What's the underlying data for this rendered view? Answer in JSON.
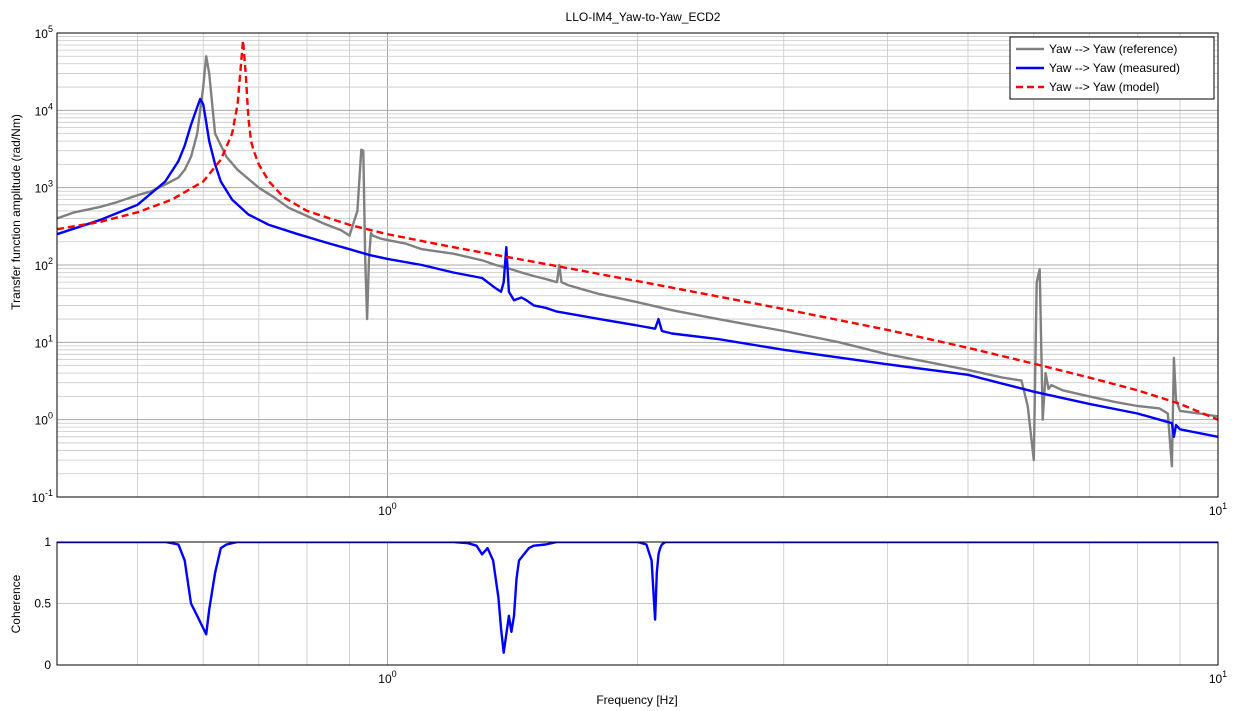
{
  "figure": {
    "title": "LLO-IM4_Yaw-to-Yaw_ECD2",
    "xlabel": "Frequency [Hz]"
  },
  "colors": {
    "reference": "#808080",
    "measured": "#0000ff",
    "model": "#ff0000",
    "grid": "#c8c8c8",
    "axes": "#000000"
  },
  "chart_data": [
    {
      "type": "line",
      "panel": "magnitude",
      "xscale": "log",
      "yscale": "log",
      "xlim": [
        0.4,
        10
      ],
      "ylim": [
        0.1,
        100000
      ],
      "xlabel": "",
      "ylabel": "Transfer function amplitude (rad/Nm)",
      "x_ticks": [
        {
          "base": "10",
          "exp": "0",
          "value": 1
        },
        {
          "base": "10",
          "exp": "1",
          "value": 10
        }
      ],
      "y_ticks": [
        {
          "base": "10",
          "exp": "-1",
          "value": 0.1
        },
        {
          "base": "10",
          "exp": "0",
          "value": 1
        },
        {
          "base": "10",
          "exp": "1",
          "value": 10
        },
        {
          "base": "10",
          "exp": "2",
          "value": 100
        },
        {
          "base": "10",
          "exp": "3",
          "value": 1000
        },
        {
          "base": "10",
          "exp": "4",
          "value": 10000
        },
        {
          "base": "10",
          "exp": "5",
          "value": 100000
        }
      ],
      "grid": true,
      "legend_position": "top-right",
      "series": [
        {
          "name": "Yaw --> Yaw (reference)",
          "style": "solid",
          "x": [
            0.4,
            0.42,
            0.45,
            0.47,
            0.5,
            0.52,
            0.54,
            0.56,
            0.57,
            0.58,
            0.59,
            0.6,
            0.605,
            0.61,
            0.615,
            0.62,
            0.64,
            0.66,
            0.68,
            0.7,
            0.73,
            0.76,
            0.8,
            0.84,
            0.88,
            0.9,
            0.92,
            0.93,
            0.935,
            0.94,
            0.945,
            0.95,
            0.955,
            0.96,
            0.97,
            0.98,
            1.0,
            1.05,
            1.1,
            1.2,
            1.3,
            1.35,
            1.4,
            1.45,
            1.5,
            1.55,
            1.6,
            1.61,
            1.62,
            1.65,
            1.7,
            1.8,
            2.0,
            2.2,
            2.5,
            3.0,
            3.5,
            4.0,
            4.5,
            5.0,
            5.5,
            5.8,
            5.9,
            6.0,
            6.05,
            6.1,
            6.15,
            6.2,
            6.25,
            6.3,
            6.5,
            7.0,
            7.5,
            8.0,
            8.5,
            8.7,
            8.8,
            8.85,
            8.9,
            9.0,
            9.5,
            10.0
          ],
          "y": [
            400,
            480,
            560,
            640,
            800,
            900,
            1100,
            1350,
            1700,
            2500,
            5000,
            20000,
            50000,
            30000,
            12000,
            5000,
            2500,
            1700,
            1300,
            1000,
            750,
            550,
            430,
            340,
            280,
            240,
            500,
            3100,
            3000,
            120,
            20,
            120,
            260,
            240,
            230,
            220,
            210,
            190,
            160,
            140,
            115,
            100,
            90,
            80,
            72,
            66,
            60,
            100,
            60,
            55,
            50,
            42,
            33,
            26,
            20,
            14,
            10,
            7,
            5.5,
            4.4,
            3.5,
            3.2,
            1.5,
            0.3,
            60,
            88,
            1.0,
            4,
            2.5,
            2.8,
            2.4,
            2.0,
            1.7,
            1.5,
            1.4,
            1.2,
            0.25,
            6.3,
            1.8,
            1.3,
            1.2,
            1.1
          ]
        },
        {
          "name": "Yaw --> Yaw (measured)",
          "style": "solid",
          "x": [
            0.4,
            0.45,
            0.5,
            0.54,
            0.56,
            0.57,
            0.58,
            0.59,
            0.595,
            0.6,
            0.605,
            0.61,
            0.62,
            0.63,
            0.65,
            0.68,
            0.72,
            0.78,
            0.85,
            0.9,
            0.95,
            1.0,
            1.1,
            1.2,
            1.3,
            1.35,
            1.37,
            1.38,
            1.39,
            1.4,
            1.42,
            1.45,
            1.47,
            1.5,
            1.55,
            1.6,
            1.8,
            2.0,
            2.1,
            2.12,
            2.14,
            2.2,
            2.5,
            3.0,
            4.0,
            5.0,
            6.0,
            7.0,
            8.0,
            8.8,
            8.85,
            8.9,
            9.0,
            10.0
          ],
          "y": [
            250,
            380,
            600,
            1200,
            2200,
            3500,
            6500,
            11000,
            14000,
            12000,
            7000,
            4000,
            2000,
            1200,
            700,
            450,
            330,
            250,
            190,
            160,
            135,
            120,
            100,
            80,
            68,
            50,
            45,
            60,
            170,
            45,
            35,
            38,
            35,
            30,
            28,
            25,
            20,
            16.5,
            15,
            20,
            14,
            13,
            11,
            8,
            5.2,
            3.8,
            2.3,
            1.6,
            1.2,
            0.9,
            0.6,
            0.85,
            0.75,
            0.6
          ]
        },
        {
          "name": "Yaw --> Yaw (model)",
          "style": "dashed",
          "x": [
            0.4,
            0.45,
            0.5,
            0.55,
            0.6,
            0.63,
            0.65,
            0.66,
            0.67,
            0.675,
            0.68,
            0.685,
            0.69,
            0.7,
            0.72,
            0.75,
            0.8,
            0.9,
            1.0,
            1.2,
            1.5,
            2.0,
            3.0,
            4.0,
            5.0,
            6.0,
            7.0,
            8.0,
            9.0,
            10.0
          ],
          "y": [
            290,
            360,
            480,
            700,
            1200,
            2300,
            5000,
            12000,
            80000,
            30000,
            8000,
            4000,
            3000,
            2000,
            1200,
            750,
            500,
            330,
            250,
            170,
            110,
            62,
            27,
            14.5,
            8.5,
            5.3,
            3.5,
            2.4,
            1.6,
            1.0
          ]
        }
      ]
    },
    {
      "type": "line",
      "panel": "coherence",
      "xscale": "log",
      "yscale": "linear",
      "xlim": [
        0.4,
        10
      ],
      "ylim": [
        0,
        1
      ],
      "xlabel": "Frequency [Hz]",
      "ylabel": "Coherence",
      "x_ticks": [
        {
          "base": "10",
          "exp": "0",
          "value": 1
        },
        {
          "base": "10",
          "exp": "1",
          "value": 10
        }
      ],
      "y_ticks": [
        {
          "label": "0",
          "value": 0
        },
        {
          "label": "0.5",
          "value": 0.5
        },
        {
          "label": "1",
          "value": 1
        }
      ],
      "grid": true,
      "series": [
        {
          "name": "",
          "x": [
            0.4,
            0.54,
            0.56,
            0.57,
            0.58,
            0.59,
            0.6,
            0.605,
            0.61,
            0.62,
            0.63,
            0.64,
            0.66,
            0.7,
            1.0,
            1.2,
            1.25,
            1.28,
            1.3,
            1.32,
            1.34,
            1.36,
            1.37,
            1.38,
            1.39,
            1.4,
            1.41,
            1.42,
            1.43,
            1.44,
            1.46,
            1.48,
            1.5,
            1.55,
            1.6,
            1.7,
            1.8,
            2.0,
            2.05,
            2.08,
            2.09,
            2.1,
            2.11,
            2.12,
            2.13,
            2.14,
            2.16,
            2.2,
            3.0,
            5.0,
            8.0,
            10.0
          ],
          "y": [
            1.0,
            1.0,
            0.98,
            0.85,
            0.5,
            0.4,
            0.3,
            0.25,
            0.45,
            0.75,
            0.95,
            0.98,
            1.0,
            1.0,
            1.0,
            1.0,
            0.99,
            0.97,
            0.9,
            0.95,
            0.85,
            0.55,
            0.3,
            0.1,
            0.25,
            0.4,
            0.27,
            0.4,
            0.7,
            0.85,
            0.9,
            0.95,
            0.97,
            0.98,
            1.0,
            1.0,
            1.0,
            1.0,
            0.98,
            0.85,
            0.6,
            0.37,
            0.75,
            0.9,
            0.95,
            0.98,
            1.0,
            1.0,
            1.0,
            1.0,
            1.0,
            1.0
          ]
        }
      ]
    }
  ]
}
